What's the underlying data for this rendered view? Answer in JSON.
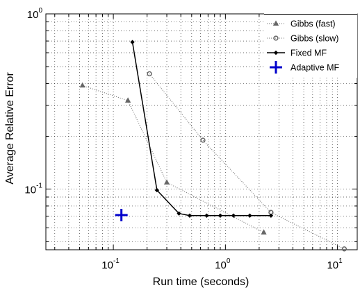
{
  "chart_data": {
    "type": "line",
    "xlabel": "Run time (seconds)",
    "ylabel": "Average Relative Error",
    "xscale": "log",
    "yscale": "log",
    "xlim": [
      0.025,
      15
    ],
    "ylim": [
      0.045,
      1.0
    ],
    "grid": true,
    "legend_position": "top-right",
    "x_ticks": [
      {
        "base": "10",
        "exp": "-1",
        "value": 0.1
      },
      {
        "base": "10",
        "exp": "0",
        "value": 1
      },
      {
        "base": "10",
        "exp": "1",
        "value": 10
      }
    ],
    "y_ticks": [
      {
        "base": "10",
        "exp": "-1",
        "value": 0.1
      },
      {
        "base": "10",
        "exp": "0",
        "value": 1
      }
    ],
    "series": [
      {
        "name": "Gibbs (fast)",
        "color": "#666666",
        "line_style": "dotted",
        "marker": "triangle",
        "x": [
          0.053,
          0.135,
          0.3,
          2.2
        ],
        "y": [
          0.39,
          0.32,
          0.109,
          0.0565
        ]
      },
      {
        "name": "Gibbs (slow)",
        "color": "#666666",
        "line_style": "dotted",
        "marker": "circle",
        "x": [
          0.21,
          0.63,
          2.55,
          11.5
        ],
        "y": [
          0.455,
          0.19,
          0.0735,
          0.0455
        ]
      },
      {
        "name": "Fixed MF",
        "color": "#000000",
        "line_style": "solid",
        "marker": "diamond",
        "x": [
          0.148,
          0.245,
          0.385,
          0.48,
          0.68,
          0.9,
          1.18,
          1.65,
          2.55
        ],
        "y": [
          0.69,
          0.0985,
          0.0725,
          0.0705,
          0.0705,
          0.0705,
          0.0705,
          0.0705,
          0.0705
        ]
      },
      {
        "name": "Adaptive MF",
        "color": "#0000cc",
        "line_style": "none",
        "marker": "plus",
        "x": [
          0.118
        ],
        "y": [
          0.071
        ]
      }
    ]
  }
}
